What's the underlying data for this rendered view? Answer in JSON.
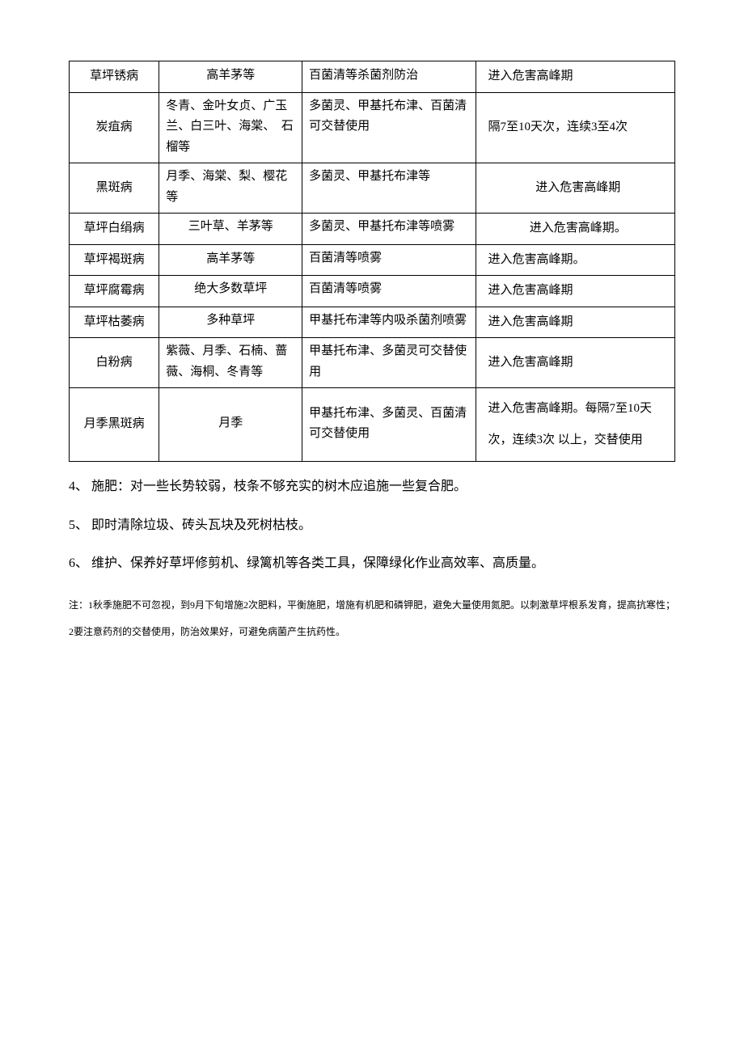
{
  "table": {
    "rows": [
      {
        "c1": "草坪锈病",
        "c2": "高羊茅等",
        "c2_class": "col2",
        "c3": "百菌清等杀菌剂防治",
        "c4": "进入危害高峰期",
        "c4_class": "col4"
      },
      {
        "c1": "炭疽病",
        "c2": "冬青、金叶女贞、广玉兰、白三叶、海棠、　石榴等",
        "c2_class": "col2 left",
        "c3": "多菌灵、甲基托布津、百菌清可交替使用",
        "c4": "隔7至10天次，连续3至4次",
        "c4_class": "col4 tall"
      },
      {
        "c1": "黑斑病",
        "c2": "月季、海棠、梨、樱花等",
        "c2_class": "col2 left",
        "c3": "多菌灵、甲基托布津等",
        "c4": "进入危害高峰期",
        "c4_class": "col4 center"
      },
      {
        "c1": "草坪白绢病",
        "c2": "三叶草、羊茅等",
        "c2_class": "col2",
        "c3": "多菌灵、甲基托布津等喷雾",
        "c4": "进入危害高峰期。",
        "c4_class": "col4 center"
      },
      {
        "c1": "草坪褐斑病",
        "c2": "高羊茅等",
        "c2_class": "col2",
        "c3": "百菌清等喷雾",
        "c4": "进入危害高峰期。",
        "c4_class": "col4"
      },
      {
        "c1": "草坪腐霉病",
        "c2": "绝大多数草坪",
        "c2_class": "col2",
        "c3": "百菌清等喷雾",
        "c4": "进入危害高峰期",
        "c4_class": "col4"
      },
      {
        "c1": "草坪枯萎病",
        "c2": "多种草坪",
        "c2_class": "col2",
        "c3": "甲基托布津等内吸杀菌剂喷雾",
        "c4": "进入危害高峰期",
        "c4_class": "col4"
      },
      {
        "c1": "白粉病",
        "c2": "紫薇、月季、石楠、蔷薇、海桐、冬青等",
        "c2_class": "col2 left",
        "c3": "甲基托布津、多菌灵可交替使用",
        "c4": "进入危害高峰期",
        "c4_class": "col4"
      },
      {
        "c1": "月季黑斑病",
        "c2": "月季",
        "c2_class": "col2",
        "c3": "甲基托布津、多菌灵、百菌清可交替使用",
        "c4": "进入危害高峰期。每隔7至10天次，连续3次 以上，交替使用",
        "c4_class": "col4 tall"
      }
    ]
  },
  "paragraphs": [
    "4、 施肥：对一些长势较弱，枝条不够充实的树木应追施一些复合肥。",
    "5、 即时清除垃圾、砖头瓦块及死树枯枝。",
    "6、 维护、保养好草坪修剪机、绿篱机等各类工具，保障绿化作业高效率、高质量。"
  ],
  "note": "注：1秋季施肥不可忽视，到9月下旬增施2次肥料，平衡施肥，增施有机肥和磷钾肥，避免大量使用氮肥。以刺激草坪根系发育，提高抗寒性；2要注意药剂的交替使用，防治效果好，可避免病菌产生抗药性。"
}
